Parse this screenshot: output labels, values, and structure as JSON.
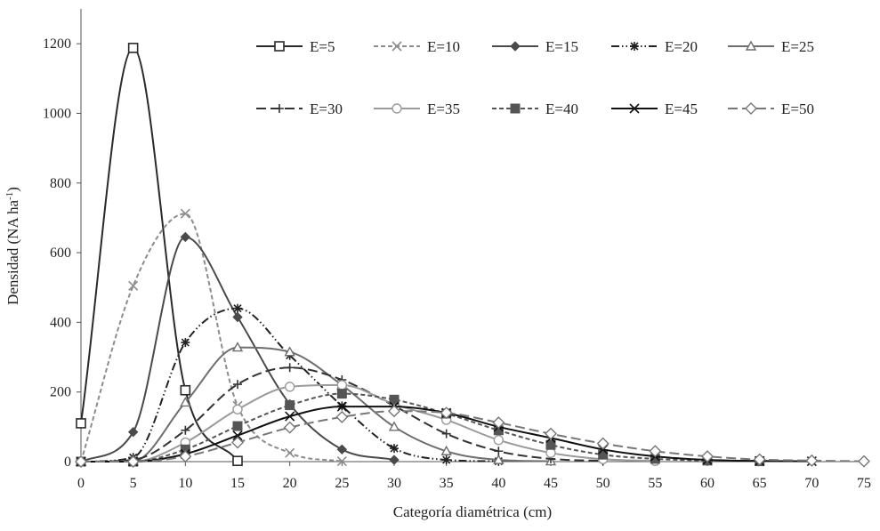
{
  "chart_data": {
    "type": "line",
    "title": "",
    "xlabel": "Categoría diamétrica (cm)",
    "ylabel": "Densidad (NA ha",
    "ylabel_sup": "-1",
    "ylabel_end": ")",
    "xlim": [
      0,
      75
    ],
    "ylim": [
      0,
      1300
    ],
    "x_ticks": [
      0,
      5,
      10,
      15,
      20,
      25,
      30,
      35,
      40,
      45,
      50,
      55,
      60,
      65,
      70,
      75
    ],
    "y_ticks": [
      0,
      200,
      400,
      600,
      800,
      1000,
      1200
    ],
    "grid": false,
    "legend_position": "top-right",
    "series": [
      {
        "name": "E=5",
        "marker": "square-open",
        "dash": "solid",
        "color": "#2a2a2a",
        "x": [
          0,
          5,
          10,
          15
        ],
        "y": [
          110,
          1188,
          205,
          2
        ]
      },
      {
        "name": "E=10",
        "marker": "x",
        "dash": "dashed",
        "color": "#8c8c8c",
        "x": [
          0,
          5,
          10,
          15,
          20,
          25
        ],
        "y": [
          0,
          505,
          712,
          160,
          25,
          1
        ]
      },
      {
        "name": "E=15",
        "marker": "diamond-filled",
        "dash": "solid",
        "color": "#4a4a4a",
        "x": [
          0,
          5,
          10,
          15,
          20,
          25,
          30
        ],
        "y": [
          0,
          85,
          645,
          415,
          165,
          35,
          5
        ]
      },
      {
        "name": "E=20",
        "marker": "asterisk",
        "dash": "dashdotdot",
        "color": "#222222",
        "x": [
          0,
          5,
          10,
          15,
          20,
          25,
          30,
          35,
          40
        ],
        "y": [
          0,
          12,
          342,
          440,
          305,
          160,
          38,
          5,
          1
        ]
      },
      {
        "name": "E=25",
        "marker": "triangle-open",
        "dash": "solid",
        "color": "#6e6e6e",
        "x": [
          0,
          5,
          10,
          15,
          20,
          25,
          30,
          35,
          40,
          45
        ],
        "y": [
          0,
          1,
          170,
          328,
          315,
          220,
          100,
          30,
          5,
          1
        ]
      },
      {
        "name": "E=30",
        "marker": "plus",
        "dash": "longdash",
        "color": "#333333",
        "x": [
          0,
          5,
          10,
          15,
          20,
          25,
          30,
          35,
          40,
          45,
          50
        ],
        "y": [
          0,
          5,
          90,
          222,
          270,
          235,
          160,
          80,
          30,
          8,
          2
        ]
      },
      {
        "name": "E=35",
        "marker": "circle-open",
        "dash": "solid",
        "color": "#9a9a9a",
        "x": [
          0,
          5,
          10,
          15,
          20,
          25,
          30,
          35,
          40,
          45,
          50,
          55
        ],
        "y": [
          0,
          0,
          55,
          150,
          215,
          220,
          165,
          120,
          62,
          25,
          7,
          2
        ]
      },
      {
        "name": "E=40",
        "marker": "square-filled",
        "dash": "dashed",
        "color": "#555555",
        "x": [
          0,
          5,
          10,
          15,
          20,
          25,
          30,
          35,
          40,
          45,
          50,
          55,
          60,
          65
        ],
        "y": [
          0,
          0,
          35,
          102,
          162,
          195,
          178,
          138,
          90,
          48,
          20,
          8,
          3,
          1
        ]
      },
      {
        "name": "E=45",
        "marker": "x",
        "dash": "solid",
        "color": "#111111",
        "x": [
          0,
          5,
          10,
          15,
          20,
          25,
          30,
          35,
          40,
          45,
          50,
          55,
          60,
          65,
          70
        ],
        "y": [
          0,
          0,
          22,
          75,
          130,
          158,
          158,
          140,
          100,
          68,
          35,
          15,
          5,
          2,
          1
        ]
      },
      {
        "name": "E=50",
        "marker": "diamond-open",
        "dash": "longdash",
        "color": "#777777",
        "x": [
          0,
          5,
          10,
          15,
          20,
          25,
          30,
          35,
          40,
          45,
          50,
          55,
          60,
          65,
          70,
          75
        ],
        "y": [
          0,
          0,
          15,
          55,
          98,
          128,
          145,
          140,
          112,
          80,
          52,
          30,
          15,
          6,
          3,
          1
        ]
      }
    ]
  }
}
